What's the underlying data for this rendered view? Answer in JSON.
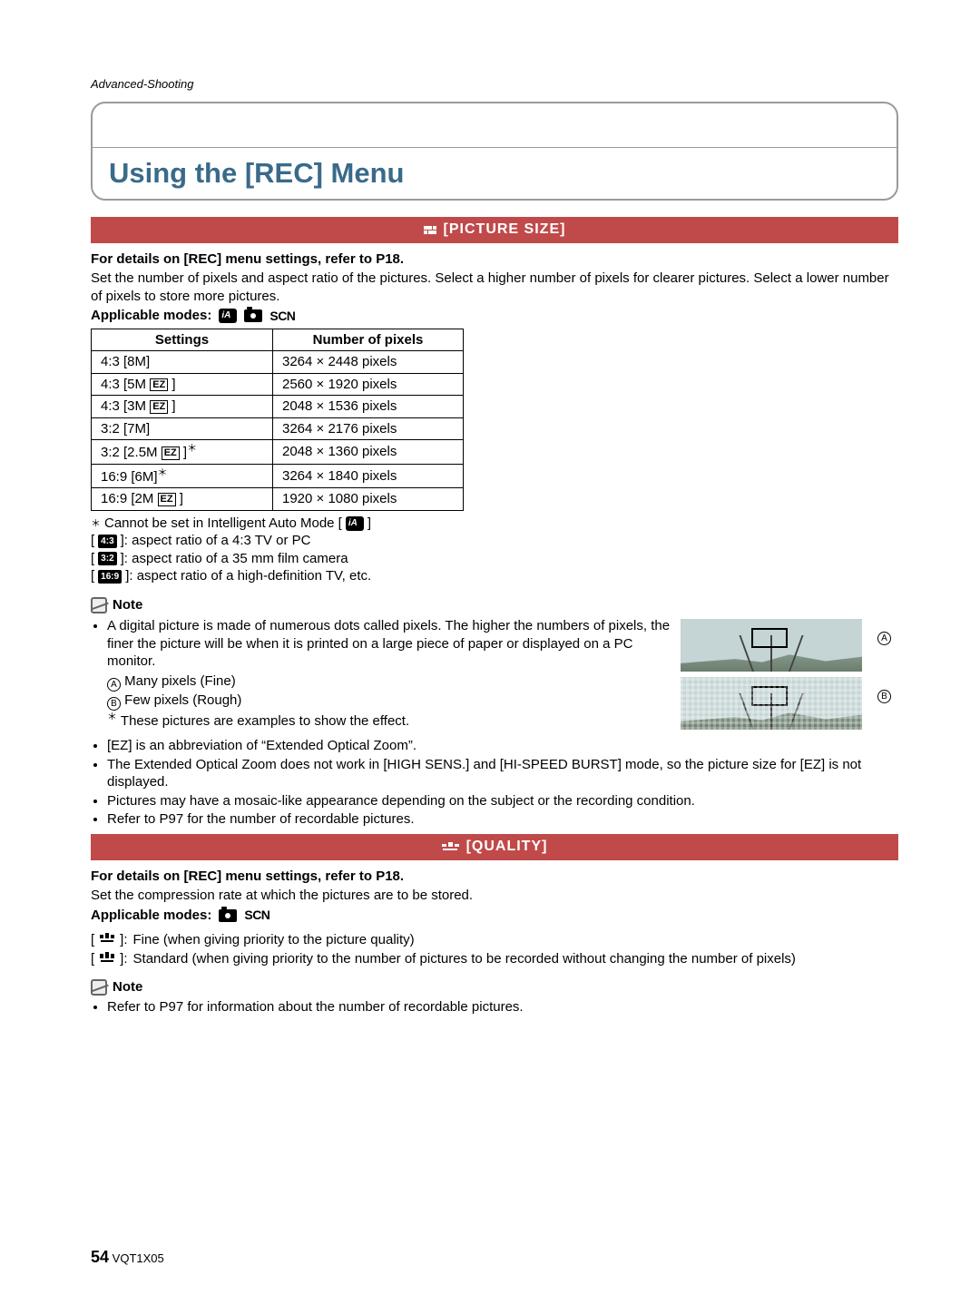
{
  "breadcrumb": "Advanced-Shooting",
  "title": "Using the [REC] Menu",
  "picture_size": {
    "heading": "[PICTURE SIZE]",
    "ref_line": "For details on [REC] menu settings, refer to P18.",
    "description": "Set the number of pixels and aspect ratio of the pictures. Select a higher number of pixels for clearer pictures. Select a lower number of pixels to store more pictures.",
    "modes_label": "Applicable modes:",
    "modes_scn": "SCN",
    "table": {
      "columns": [
        "Settings",
        "Number of pixels"
      ],
      "rows": [
        {
          "ratio": "4:3",
          "size": "[8M]",
          "ez": false,
          "star": false,
          "pixels": "3264 × 2448 pixels"
        },
        {
          "ratio": "4:3",
          "size": "[5M",
          "ez": true,
          "star": false,
          "close": "]",
          "pixels": "2560 × 1920 pixels"
        },
        {
          "ratio": "4:3",
          "size": "[3M",
          "ez": true,
          "star": false,
          "close": "]",
          "pixels": "2048 × 1536 pixels"
        },
        {
          "ratio": "3:2",
          "size": "[7M]",
          "ez": false,
          "star": false,
          "pixels": "3264 × 2176 pixels"
        },
        {
          "ratio": "3:2",
          "size": "[2.5M",
          "ez": true,
          "star": true,
          "close": "]",
          "pixels": "2048 × 1360 pixels"
        },
        {
          "ratio": "16:9",
          "size": "[6M]",
          "ez": false,
          "star": true,
          "pixels": "3264 × 1840 pixels"
        },
        {
          "ratio": "16:9",
          "size": "[2M",
          "ez": true,
          "star": false,
          "close": "]",
          "pixels": "1920 × 1080 pixels"
        }
      ]
    },
    "legend_star": "Cannot be set in Intelligent Auto Mode [",
    "legend_star_after": "]",
    "legend_43_badge": "4:3",
    "legend_43": "]: aspect ratio of a 4:3 TV or PC",
    "legend_32_badge": "3:2",
    "legend_32": "]: aspect ratio of a 35 mm film camera",
    "legend_169_badge": "16:9",
    "legend_169": "]: aspect ratio of a high-definition TV, etc.",
    "note_label": "Note",
    "note_p1": "A digital picture is made of numerous dots called pixels. The higher the numbers of pixels, the finer the picture will be when it is printed on a large piece of paper or displayed on a PC monitor.",
    "note_a_label": "A",
    "note_a": "Many pixels (Fine)",
    "note_b_label": "B",
    "note_b": "Few pixels (Rough)",
    "note_star": "These pictures are examples to show the effect.",
    "bullets": [
      "[EZ] is an abbreviation of “Extended Optical Zoom”.",
      "The Extended Optical Zoom does not work in [HIGH SENS.] and [HI-SPEED BURST] mode, so the picture size for [EZ] is not displayed.",
      "Pictures may have a mosaic-like appearance depending on the subject or the recording condition.",
      "Refer to P97 for the number of recordable pictures."
    ],
    "fig_label_a": "A",
    "fig_label_b": "B"
  },
  "quality": {
    "heading": "[QUALITY]",
    "ref_line": "For details on [REC] menu settings, refer to P18.",
    "description": "Set the compression rate at which the pictures are to be stored.",
    "modes_label": "Applicable modes:",
    "modes_scn": "SCN",
    "fine_text": "Fine (when giving priority to the picture quality)",
    "std_text": "Standard (when giving priority to the number of pictures to be recorded without changing the number of pixels)",
    "note_label": "Note",
    "bullets": [
      "Refer to P97 for information about the number of recordable pictures."
    ]
  },
  "footer": {
    "page": "54",
    "code": "VQT1X05"
  },
  "colors": {
    "accent": "#3a6a8a",
    "bar": "#c04a4a",
    "rule": "#9a9a9a"
  }
}
